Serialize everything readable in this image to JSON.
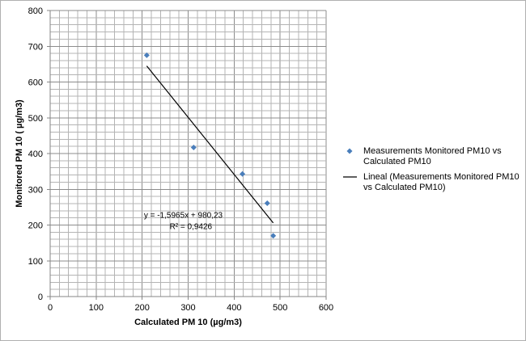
{
  "chart_data": {
    "type": "scatter",
    "xlabel": "Calculated PM 10 (µg/m3)",
    "ylabel": "Monitored PM 10 ( µg/m3)",
    "xlim": [
      0,
      600
    ],
    "ylim": [
      0,
      800
    ],
    "x_ticks": [
      0,
      100,
      200,
      300,
      400,
      500,
      600
    ],
    "y_ticks": [
      0,
      100,
      200,
      300,
      400,
      500,
      600,
      700,
      800
    ],
    "x_tick_labels": [
      "0",
      "100",
      "200",
      "300",
      "400",
      "500",
      "600"
    ],
    "y_tick_labels": [
      "0",
      "100",
      "200",
      "300",
      "400",
      "500",
      "600",
      "700",
      "800"
    ],
    "x_minor_step": 20,
    "y_minor_step": 20,
    "grid": true,
    "series": [
      {
        "name": "Measurements Monitored PM10 vs Calculated PM10",
        "legend_lines": [
          "Measurements Monitored PM10 vs",
          "Calculated PM10"
        ],
        "marker": "diamond",
        "color": "#4A7EBB",
        "x": [
          210,
          312,
          418,
          472,
          485
        ],
        "y": [
          675,
          417,
          343,
          261,
          170
        ]
      }
    ],
    "trendline": {
      "name": "Lineal (Measurements Monitored PM10 vs Calculated PM10)",
      "legend_lines": [
        "Lineal (Measurements Monitored PM10",
        "vs Calculated PM10)"
      ],
      "color": "#000000",
      "slope": -1.5965,
      "intercept": 980.23,
      "x_range": [
        210,
        485
      ],
      "equation": "y = -1,5965x + 980,23",
      "r_squared": "R² = 0,9426"
    },
    "legend_position": "right"
  }
}
